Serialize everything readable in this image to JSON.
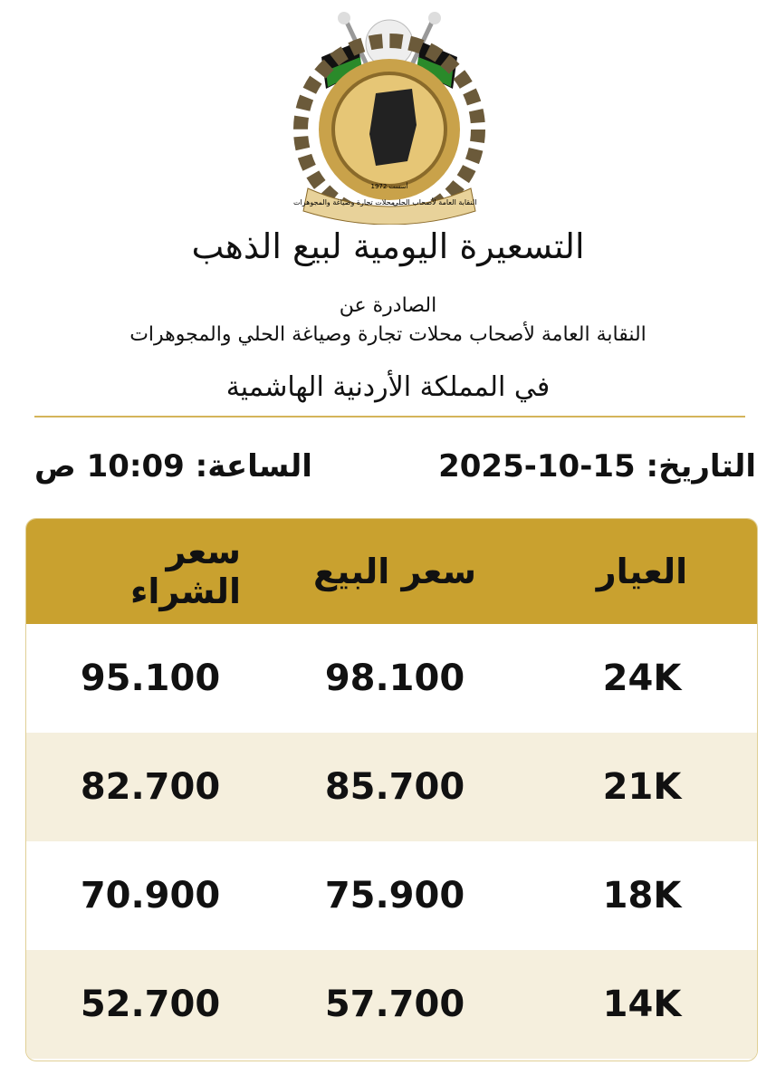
{
  "logo": {
    "text_right": "النقابة العامة لأصحاب الحلي",
    "text_left": "محلات تجارة وصياغة والمجوهرات",
    "founded": "أسست 1972"
  },
  "header": {
    "title": "التسعيرة اليومية لبيع الذهب",
    "issued_by": "الصادرة عن",
    "organization": "النقابة العامة لأصحاب محلات تجارة وصياغة الحلي والمجوهرات",
    "country": "في المملكة الأردنية الهاشمية"
  },
  "info": {
    "date": "التاريخ: 15-10-2025",
    "time": "الساعة: 10:09 ص"
  },
  "table": {
    "headers": [
      "العيار",
      "سعر البيع",
      "سعر الشراء"
    ],
    "rows": [
      [
        "24K",
        "98.100",
        "95.100"
      ],
      [
        "21K",
        "85.700",
        "82.700"
      ],
      [
        "18K",
        "75.900",
        "70.900"
      ],
      [
        "14K",
        "57.700",
        "52.700"
      ]
    ]
  }
}
